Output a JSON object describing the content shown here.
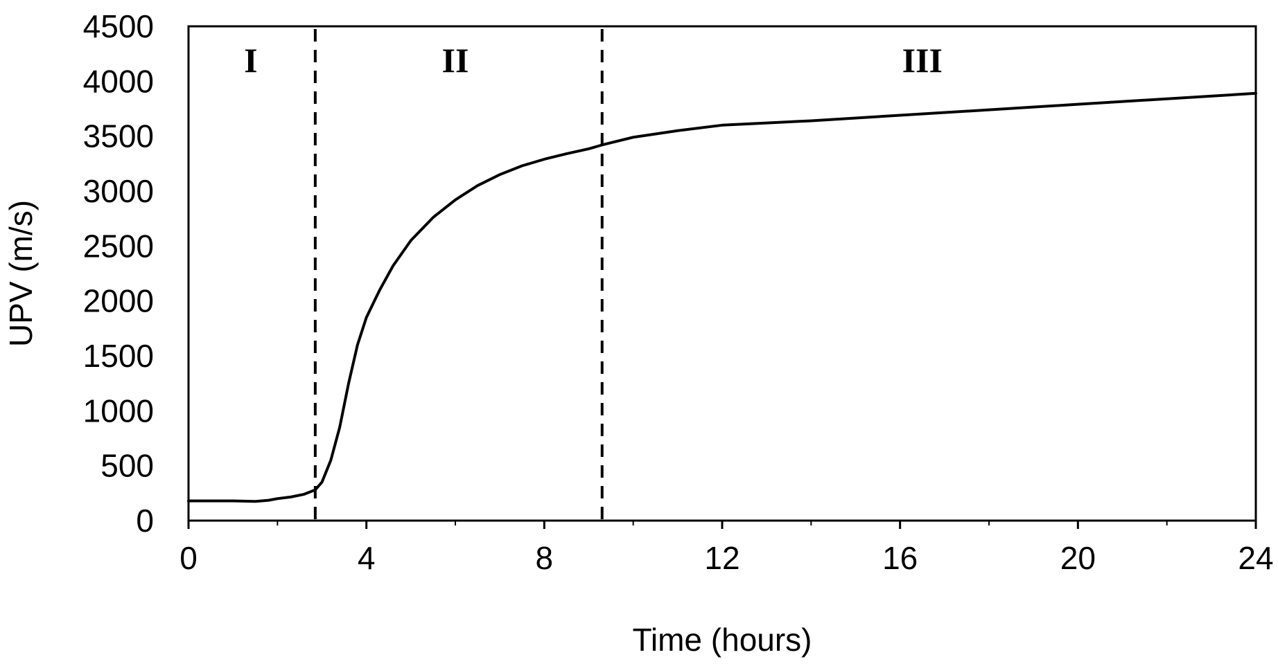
{
  "chart_data": {
    "type": "line",
    "title": "",
    "xlabel": "Time (hours)",
    "ylabel": "UPV (m/s)",
    "xlim": [
      0,
      24
    ],
    "ylim": [
      0,
      4500
    ],
    "x_ticks": [
      0,
      4,
      8,
      12,
      16,
      20,
      24
    ],
    "x_minor_ticks": [
      2,
      6,
      10,
      14,
      18,
      22
    ],
    "y_ticks": [
      0,
      500,
      1000,
      1500,
      2000,
      2500,
      3000,
      3500,
      4000,
      4500
    ],
    "grid": false,
    "legend": "none",
    "line_color": "#000000",
    "series": [
      {
        "x": [
          0,
          0.5,
          1.0,
          1.5,
          1.8,
          2.0,
          2.3,
          2.6,
          2.85,
          3.0,
          3.2,
          3.4,
          3.6,
          3.8,
          4.0,
          4.3,
          4.6,
          5.0,
          5.5,
          6.0,
          6.5,
          7.0,
          7.5,
          8.0,
          8.5,
          9.0,
          9.3,
          9.6,
          10.0,
          11.0,
          12.0,
          13.0,
          14.0,
          16.0,
          18.0,
          20.0,
          22.0,
          24.0
        ],
        "y": [
          180,
          180,
          180,
          175,
          185,
          200,
          215,
          240,
          280,
          350,
          550,
          850,
          1250,
          1600,
          1850,
          2100,
          2320,
          2550,
          2760,
          2920,
          3050,
          3150,
          3230,
          3290,
          3340,
          3385,
          3420,
          3450,
          3490,
          3550,
          3600,
          3620,
          3640,
          3690,
          3740,
          3790,
          3840,
          3890
        ]
      }
    ],
    "vlines": [
      {
        "x": 2.85,
        "style": "dashed"
      },
      {
        "x": 9.3,
        "style": "dashed"
      }
    ],
    "annotations": [
      {
        "text": "I",
        "x": 1.4
      },
      {
        "text": "II",
        "x": 6.0
      },
      {
        "text": "III",
        "x": 16.5
      }
    ]
  }
}
